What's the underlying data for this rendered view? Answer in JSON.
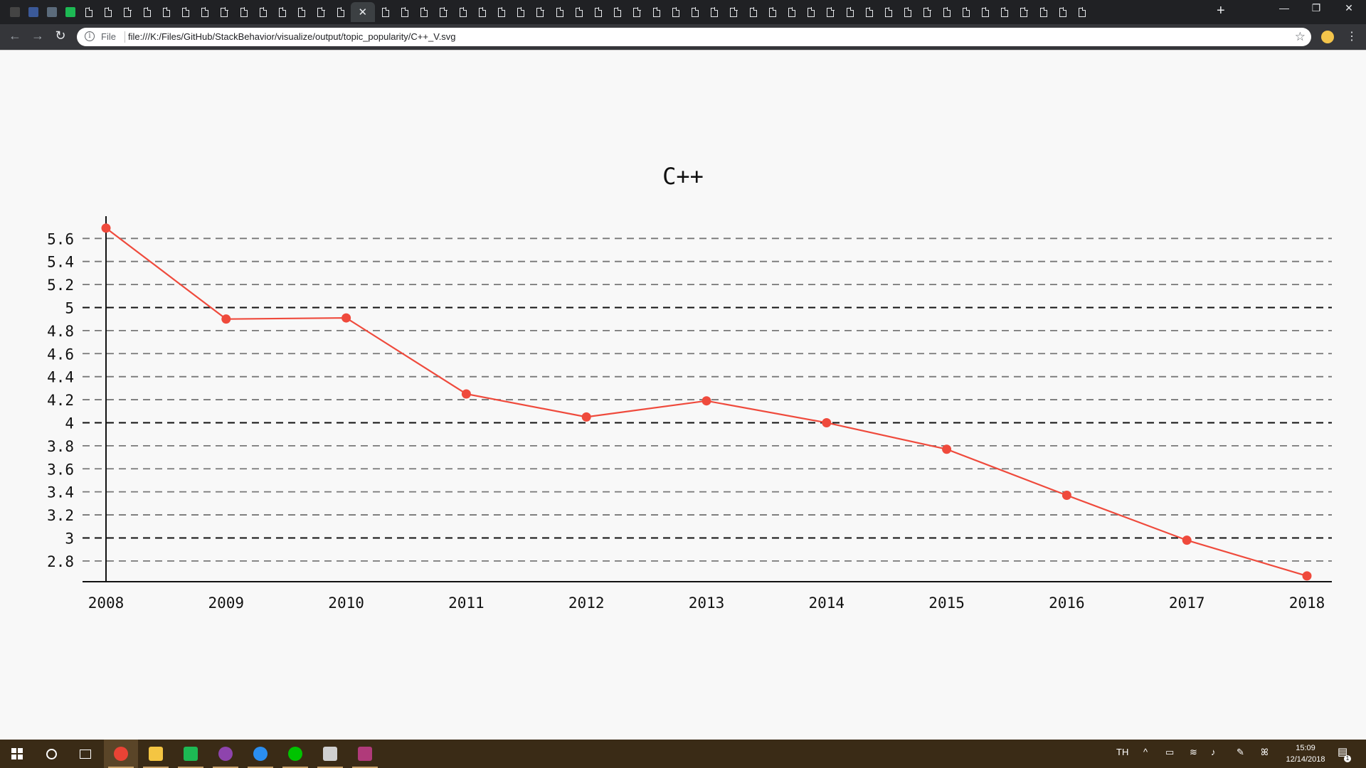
{
  "browser": {
    "address_scheme_label": "File",
    "url": "file:///K:/Files/GitHub/StackBehavior/visualize/output/topic_popularity/C++_V.svg",
    "new_tab_symbol": "+",
    "active_tab_close": "✕",
    "window_controls": {
      "minimize": "—",
      "restore": "❐",
      "close": "✕"
    }
  },
  "chart_data": {
    "type": "line",
    "title": "C++",
    "xlabel": "",
    "ylabel": "",
    "x": [
      "2008",
      "2009",
      "2010",
      "2011",
      "2012",
      "2013",
      "2014",
      "2015",
      "2016",
      "2017",
      "2018"
    ],
    "series": [
      {
        "values": [
          5.69,
          4.9,
          4.91,
          4.25,
          4.05,
          4.19,
          4.0,
          3.77,
          3.37,
          2.98,
          2.67
        ],
        "color": "#ef4a3c"
      }
    ],
    "y_ticks": [
      "5.6",
      "5.4",
      "5.2",
      "5",
      "4.8",
      "4.6",
      "4.4",
      "4.2",
      "4",
      "3.8",
      "3.6",
      "3.4",
      "3.2",
      "3",
      "2.8"
    ],
    "ylim": [
      2.62,
      5.75
    ],
    "grid": true,
    "major_grid_color": "#111111",
    "minor_grid_color": "#777777"
  },
  "taskbar": {
    "apps": [
      {
        "name": "start-icon",
        "color": "#ffffff"
      },
      {
        "name": "search-icon",
        "color": "#ffffff"
      },
      {
        "name": "task-view-icon",
        "color": "#ffffff"
      },
      {
        "name": "chrome-icon",
        "color": "#ea4335"
      },
      {
        "name": "file-explorer-icon",
        "color": "#f4c542"
      },
      {
        "name": "spotify-icon",
        "color": "#1db954"
      },
      {
        "name": "github-desktop-icon",
        "color": "#8e44ad"
      },
      {
        "name": "vscode-icon",
        "color": "#2a8ef0"
      },
      {
        "name": "line-icon",
        "color": "#00c300"
      },
      {
        "name": "terminal-icon",
        "color": "#d0d0d0"
      },
      {
        "name": "winrar-icon",
        "color": "#b03a7a"
      }
    ],
    "language": "TH",
    "time": "15:09",
    "date": "12/14/2018",
    "notifications": "1"
  }
}
